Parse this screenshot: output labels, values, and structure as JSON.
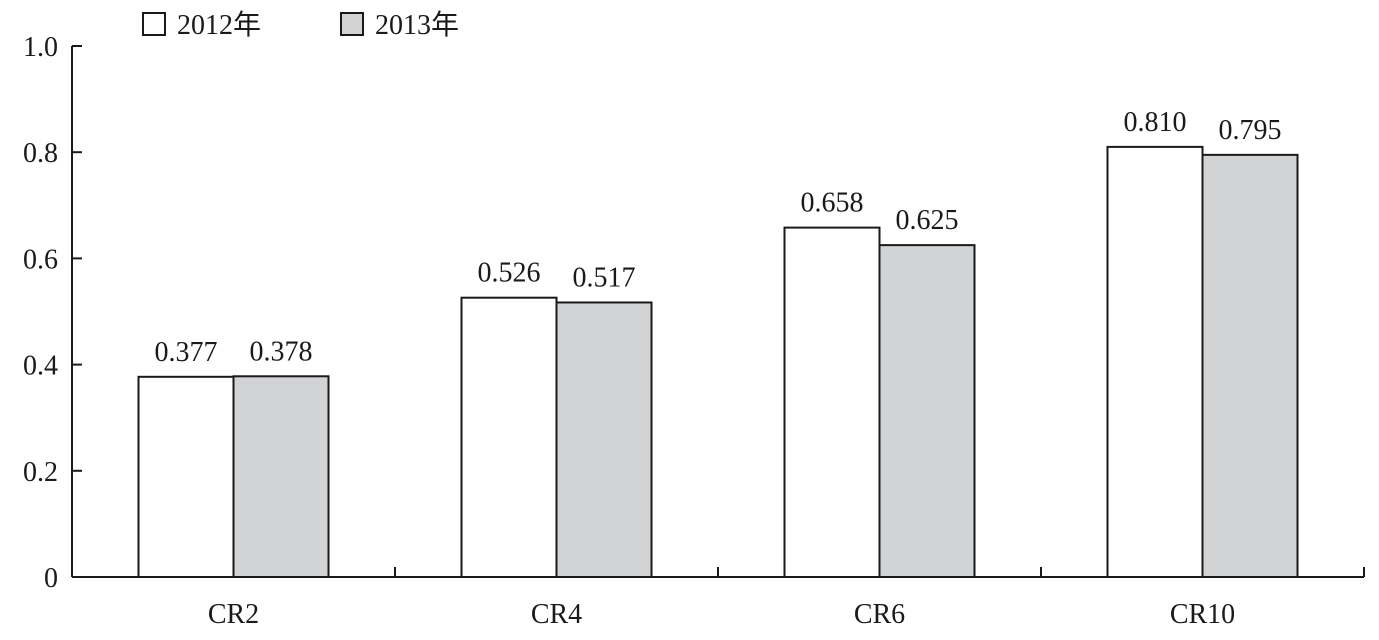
{
  "chart_data": {
    "type": "bar",
    "categories": [
      "CR2",
      "CR4",
      "CR6",
      "CR10"
    ],
    "series": [
      {
        "name": "2012年",
        "values": [
          0.377,
          0.526,
          0.658,
          0.81
        ],
        "color": "#ffffff"
      },
      {
        "name": "2013年",
        "values": [
          0.378,
          0.517,
          0.625,
          0.795
        ],
        "color": "#d2d3d5"
      }
    ],
    "data_labels": [
      [
        "0.377",
        "0.526",
        "0.658",
        "0.810"
      ],
      [
        "0.378",
        "0.517",
        "0.625",
        "0.795"
      ]
    ],
    "yticks": [
      0,
      0.2,
      0.4,
      0.6,
      0.8,
      1.0
    ],
    "ytick_labels": [
      "0",
      "0.2",
      "0.4",
      "0.6",
      "0.8",
      "1.0"
    ],
    "ylim": [
      0,
      1.0
    ],
    "title": "",
    "xlabel": "",
    "ylabel": "",
    "grid": false,
    "legend_position": "top-left",
    "edge_color": "#1a1a1a"
  }
}
